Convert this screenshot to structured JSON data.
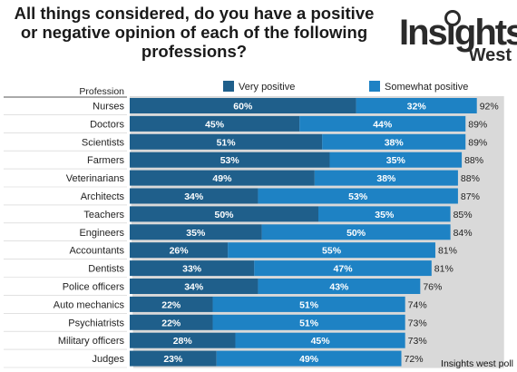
{
  "title": "All things considered, do you have a positive or negative opinion of each of the following professions?",
  "logo": {
    "word": "Insights",
    "sub": "West"
  },
  "footer": "Insights west poll",
  "colors": {
    "very": "#1f5f8b",
    "somewhat": "#1e82c4",
    "shadow": "#c6c6c6",
    "text": "#222222"
  },
  "chart_data": {
    "type": "bar",
    "orientation": "horizontal",
    "stacked": true,
    "category_header": "Profession",
    "categories": [
      "Nurses",
      "Doctors",
      "Scientists",
      "Farmers",
      "Veterinarians",
      "Architects",
      "Teachers",
      "Engineers",
      "Accountants",
      "Dentists",
      "Police officers",
      "Auto mechanics",
      "Psychiatrists",
      "Military officers",
      "Judges"
    ],
    "series": [
      {
        "name": "Very positive",
        "values": [
          60,
          45,
          51,
          53,
          49,
          34,
          50,
          35,
          26,
          33,
          34,
          22,
          22,
          28,
          23
        ]
      },
      {
        "name": "Somewhat positive",
        "values": [
          32,
          44,
          38,
          35,
          38,
          53,
          35,
          50,
          55,
          47,
          43,
          51,
          51,
          45,
          49
        ]
      }
    ],
    "totals": [
      92,
      89,
      89,
      88,
      88,
      87,
      85,
      84,
      81,
      81,
      76,
      74,
      73,
      73,
      72
    ],
    "value_suffix": "%",
    "legend_position": "top",
    "grid": false
  }
}
